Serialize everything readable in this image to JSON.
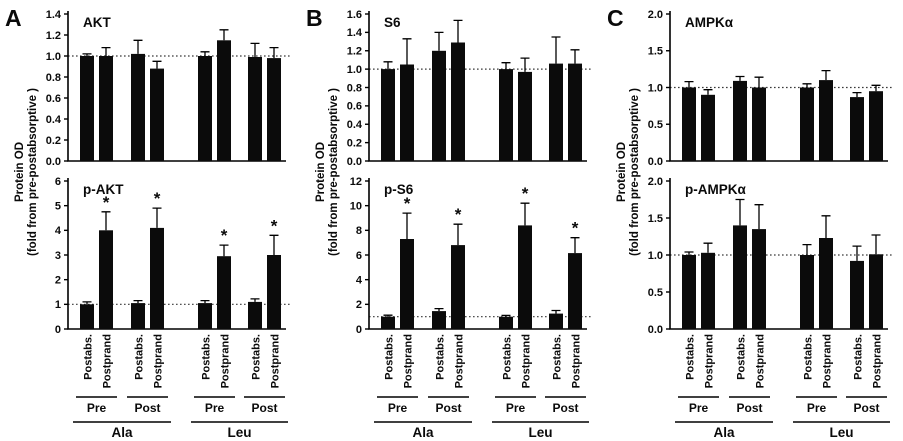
{
  "figure": {
    "y_axis_title_line1": "Protein OD",
    "y_axis_title_line2": "(fold from pre-postabsorptive )",
    "condition_labels": [
      "Postabs.",
      "Postprand"
    ],
    "group_labels": [
      "Pre",
      "Post",
      "Pre",
      "Post"
    ],
    "treatment_labels": [
      "Ala",
      "Leu"
    ],
    "significance_marker": "*",
    "bar_color": "#0b0b0b",
    "reference_line_value": 1.0,
    "panel_letters": [
      "A",
      "B",
      "C"
    ]
  },
  "chart_data": [
    {
      "panel": "A",
      "row": "top",
      "type": "bar",
      "title": "AKT",
      "ylim": [
        0,
        1.4
      ],
      "reference_line": 1.0,
      "yticks": [
        [
          0,
          "0.0"
        ],
        [
          0.2,
          "0.2"
        ],
        [
          0.4,
          "0.4"
        ],
        [
          0.6,
          "0.6"
        ],
        [
          0.8,
          "0.8"
        ],
        [
          1.0,
          "1.0"
        ],
        [
          1.2,
          "1.2"
        ],
        [
          1.4,
          "1.4"
        ]
      ],
      "categories": [
        "Ala Pre Postabs.",
        "Ala Pre Postprand",
        "Ala Post Postabs.",
        "Ala Post Postprand",
        "Leu Pre Postabs.",
        "Leu Pre Postprand",
        "Leu Post Postabs.",
        "Leu Post Postprand"
      ],
      "values": [
        1.0,
        1.0,
        1.02,
        0.88,
        1.0,
        1.15,
        0.99,
        0.98
      ],
      "errors": [
        0.02,
        0.08,
        0.13,
        0.07,
        0.04,
        0.1,
        0.13,
        0.1
      ],
      "sig": [
        false,
        false,
        false,
        false,
        false,
        false,
        false,
        false
      ]
    },
    {
      "panel": "A",
      "row": "bottom",
      "type": "bar",
      "title": "p-AKT",
      "ylim": [
        0,
        6
      ],
      "reference_line": 1.0,
      "yticks": [
        [
          0,
          "0"
        ],
        [
          1,
          "1"
        ],
        [
          2,
          "2"
        ],
        [
          3,
          "3"
        ],
        [
          4,
          "4"
        ],
        [
          5,
          "5"
        ],
        [
          6,
          "6"
        ]
      ],
      "categories": [
        "Ala Pre Postabs.",
        "Ala Pre Postprand",
        "Ala Post Postabs.",
        "Ala Post Postprand",
        "Leu Pre Postabs.",
        "Leu Pre Postprand",
        "Leu Post Postabs.",
        "Leu Post Postprand"
      ],
      "values": [
        1.0,
        4.0,
        1.05,
        4.1,
        1.05,
        2.95,
        1.1,
        3.0
      ],
      "errors": [
        0.1,
        0.75,
        0.1,
        0.8,
        0.1,
        0.45,
        0.12,
        0.8
      ],
      "sig": [
        false,
        true,
        false,
        true,
        false,
        true,
        false,
        true
      ]
    },
    {
      "panel": "B",
      "row": "top",
      "type": "bar",
      "title": "S6",
      "ylim": [
        0,
        1.6
      ],
      "reference_line": 1.0,
      "yticks": [
        [
          0,
          "0.0"
        ],
        [
          0.2,
          "0.2"
        ],
        [
          0.4,
          "0.4"
        ],
        [
          0.6,
          "0.6"
        ],
        [
          0.8,
          "0.8"
        ],
        [
          1.0,
          "1.0"
        ],
        [
          1.2,
          "1.2"
        ],
        [
          1.4,
          "1.4"
        ],
        [
          1.6,
          "1.6"
        ]
      ],
      "categories": [
        "Ala Pre Postabs.",
        "Ala Pre Postprand",
        "Ala Post Postabs.",
        "Ala Post Postprand",
        "Leu Pre Postabs.",
        "Leu Pre Postprand",
        "Leu Post Postabs.",
        "Leu Post Postprand"
      ],
      "values": [
        1.0,
        1.05,
        1.2,
        1.29,
        1.0,
        0.97,
        1.06,
        1.06
      ],
      "errors": [
        0.08,
        0.28,
        0.2,
        0.24,
        0.07,
        0.15,
        0.29,
        0.15
      ],
      "sig": [
        false,
        false,
        false,
        false,
        false,
        false,
        false,
        false
      ]
    },
    {
      "panel": "B",
      "row": "bottom",
      "type": "bar",
      "title": "p-S6",
      "ylim": [
        0,
        12
      ],
      "reference_line": 1.0,
      "yticks": [
        [
          0,
          "0"
        ],
        [
          2,
          "2"
        ],
        [
          4,
          "4"
        ],
        [
          6,
          "6"
        ],
        [
          8,
          "8"
        ],
        [
          10,
          "10"
        ],
        [
          12,
          "12"
        ]
      ],
      "categories": [
        "Ala Pre Postabs.",
        "Ala Pre Postprand",
        "Ala Post Postabs.",
        "Ala Post Postprand",
        "Leu Pre Postabs.",
        "Leu Pre Postprand",
        "Leu Post Postabs.",
        "Leu Post Postprand"
      ],
      "values": [
        1.0,
        7.3,
        1.45,
        6.8,
        1.0,
        8.4,
        1.25,
        6.15
      ],
      "errors": [
        0.12,
        2.1,
        0.2,
        1.7,
        0.1,
        1.8,
        0.25,
        1.25
      ],
      "sig": [
        false,
        true,
        false,
        true,
        false,
        true,
        false,
        true
      ]
    },
    {
      "panel": "C",
      "row": "top",
      "type": "bar",
      "title": "AMPKα",
      "ylim": [
        0,
        2.0
      ],
      "reference_line": 1.0,
      "yticks": [
        [
          0,
          "0.0"
        ],
        [
          0.5,
          "0.5"
        ],
        [
          1.0,
          "1.0"
        ],
        [
          1.5,
          "1.5"
        ],
        [
          2.0,
          "2.0"
        ]
      ],
      "categories": [
        "Ala Pre Postabs.",
        "Ala Pre Postprand",
        "Ala Post Postabs.",
        "Ala Post Postprand",
        "Leu Pre Postabs.",
        "Leu Pre Postprand",
        "Leu Post Postabs.",
        "Leu Post Postprand"
      ],
      "values": [
        1.0,
        0.9,
        1.09,
        1.0,
        1.0,
        1.1,
        0.87,
        0.95
      ],
      "errors": [
        0.08,
        0.07,
        0.06,
        0.14,
        0.05,
        0.13,
        0.06,
        0.08
      ],
      "sig": [
        false,
        false,
        false,
        false,
        false,
        false,
        false,
        false
      ]
    },
    {
      "panel": "C",
      "row": "bottom",
      "type": "bar",
      "title": "p-AMPKα",
      "ylim": [
        0,
        2.0
      ],
      "reference_line": 1.0,
      "yticks": [
        [
          0,
          "0.0"
        ],
        [
          0.5,
          "0.5"
        ],
        [
          1.0,
          "1.0"
        ],
        [
          1.5,
          "1.5"
        ],
        [
          2.0,
          "2.0"
        ]
      ],
      "categories": [
        "Ala Pre Postabs.",
        "Ala Pre Postprand",
        "Ala Post Postabs.",
        "Ala Post Postprand",
        "Leu Pre Postabs.",
        "Leu Pre Postprand",
        "Leu Post Postabs.",
        "Leu Post Postprand"
      ],
      "values": [
        1.0,
        1.03,
        1.4,
        1.35,
        1.0,
        1.23,
        0.92,
        1.01
      ],
      "errors": [
        0.04,
        0.13,
        0.35,
        0.33,
        0.14,
        0.3,
        0.2,
        0.26
      ],
      "sig": [
        false,
        false,
        false,
        false,
        false,
        false,
        false,
        false
      ]
    }
  ]
}
